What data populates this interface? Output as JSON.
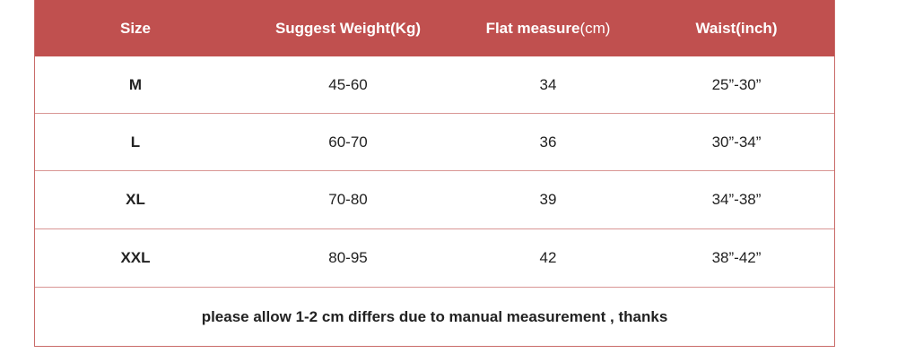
{
  "table": {
    "header": [
      "Size",
      "Suggest Weight(Kg)",
      {
        "bold": "Flat measure",
        "normal": "(cm)"
      },
      "Waist(inch)"
    ],
    "rows": [
      [
        "M",
        "45-60",
        34,
        "25”-30”"
      ],
      [
        "L",
        "60-70",
        36,
        "30”-34”"
      ],
      [
        "XL",
        "70-80",
        39,
        "34”-38”"
      ],
      [
        "XXL",
        "80-95",
        42,
        "38”-42”"
      ]
    ],
    "note": "please allow 1-2 cm differs due to manual measurement , thanks"
  }
}
